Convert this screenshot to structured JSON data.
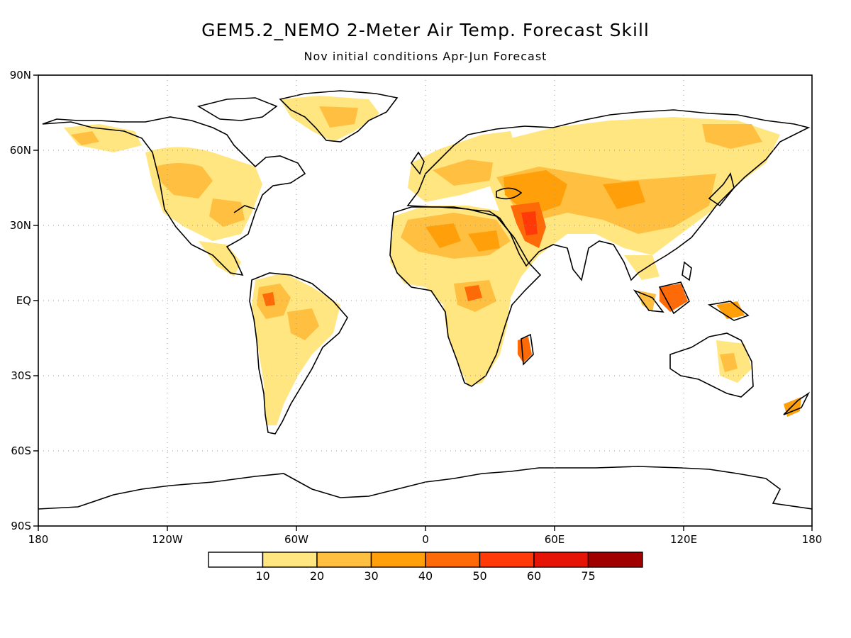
{
  "title": "GEM5.2_NEMO 2-Meter Air Temp. Forecast Skill",
  "subtitle": "Nov initial conditions  Apr-Jun Forecast",
  "lat_labels": [
    "90N",
    "60N",
    "30N",
    "EQ",
    "30S",
    "60S",
    "90S"
  ],
  "lon_labels": [
    "180",
    "120W",
    "60W",
    "0",
    "60E",
    "120E",
    "180"
  ],
  "colorbar": {
    "colors": [
      "#ffffff",
      "#ffe680",
      "#ffbf40",
      "#ffa00a",
      "#ff6a08",
      "#ff3a08",
      "#e61406",
      "#a00000"
    ],
    "labels": [
      "10",
      "20",
      "30",
      "40",
      "50",
      "60",
      "75"
    ]
  }
}
